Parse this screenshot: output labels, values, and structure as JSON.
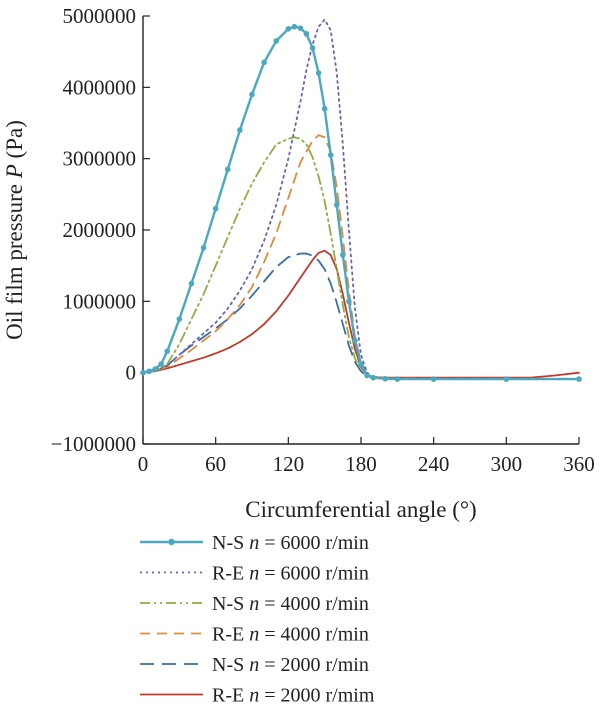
{
  "chart_data": {
    "type": "line",
    "xlabel": "Circumferential angle (°)",
    "ylabel_prefix": "Oil film pressure ",
    "ylabel_symbol": "P",
    "ylabel_suffix": " (Pa)",
    "xlim": [
      0,
      360
    ],
    "ylim": [
      -1000000,
      5000000
    ],
    "xticks": [
      0,
      60,
      120,
      180,
      240,
      300,
      360
    ],
    "yticks": [
      -1000000,
      0,
      1000000,
      2000000,
      3000000,
      4000000,
      5000000
    ],
    "xtick_labels": [
      "0",
      "60",
      "120",
      "180",
      "240",
      "300",
      "360"
    ],
    "ytick_labels": [
      "−1000000",
      "0",
      "1000000",
      "2000000",
      "3000000",
      "4000000",
      "5000000"
    ],
    "grid": false,
    "legend_position": "below",
    "series": [
      {
        "name": "N-S n = 6000 r/min",
        "label_prefix": "N-S ",
        "label_var": "n",
        "label_value": " =  6000 r/min",
        "color": "#4aa8c0",
        "style": "solid-dot",
        "x": [
          0,
          5,
          10,
          15,
          20,
          30,
          40,
          50,
          60,
          70,
          80,
          90,
          100,
          110,
          120,
          125,
          130,
          135,
          140,
          145,
          150,
          155,
          160,
          165,
          170,
          175,
          180,
          185,
          190,
          200,
          210,
          240,
          300,
          360
        ],
        "y": [
          0,
          20000,
          50000,
          120000,
          300000,
          750000,
          1250000,
          1750000,
          2300000,
          2850000,
          3400000,
          3900000,
          4350000,
          4650000,
          4820000,
          4850000,
          4830000,
          4750000,
          4550000,
          4200000,
          3700000,
          3050000,
          2350000,
          1650000,
          1000000,
          450000,
          120000,
          -40000,
          -70000,
          -85000,
          -90000,
          -90000,
          -90000,
          -90000
        ]
      },
      {
        "name": "R-E n = 6000 r/min",
        "label_prefix": "R-E ",
        "label_var": "n",
        "label_value": " = 6000 r/min",
        "color": "#6a62b8",
        "style": "dotted",
        "x": [
          0,
          10,
          20,
          30,
          40,
          50,
          60,
          70,
          80,
          90,
          100,
          110,
          120,
          130,
          135,
          140,
          145,
          150,
          155,
          160,
          165,
          170,
          175,
          180,
          185,
          190,
          200,
          240,
          300,
          360
        ],
        "y": [
          0,
          20000,
          100000,
          250000,
          400000,
          550000,
          700000,
          900000,
          1150000,
          1450000,
          1850000,
          2350000,
          3000000,
          3800000,
          4250000,
          4600000,
          4850000,
          4950000,
          4800000,
          4200000,
          3200000,
          2000000,
          900000,
          250000,
          0,
          -70000,
          -85000,
          -90000,
          -90000,
          -90000
        ]
      },
      {
        "name": "N-S n = 4000 r/min",
        "label_prefix": "N-S ",
        "label_var": "n",
        "label_value": " = 4000 r/min",
        "color": "#8bb040",
        "style": "dash-dot-dot",
        "x": [
          0,
          10,
          20,
          30,
          40,
          50,
          60,
          70,
          80,
          90,
          100,
          110,
          120,
          125,
          130,
          135,
          140,
          145,
          150,
          155,
          160,
          165,
          170,
          175,
          180,
          185,
          190,
          200,
          240,
          300,
          360
        ],
        "y": [
          0,
          30000,
          120000,
          400000,
          750000,
          1100000,
          1500000,
          1900000,
          2300000,
          2650000,
          2950000,
          3200000,
          3280000,
          3300000,
          3280000,
          3200000,
          3020000,
          2750000,
          2400000,
          1950000,
          1450000,
          950000,
          500000,
          200000,
          50000,
          -40000,
          -70000,
          -85000,
          -90000,
          -90000,
          -90000
        ]
      },
      {
        "name": "R-E n = 4000 r/min",
        "label_prefix": "R-E ",
        "label_var": "n",
        "label_value": " = 4000 r/min",
        "color": "#e08a3a",
        "style": "dashed",
        "x": [
          0,
          10,
          20,
          30,
          40,
          50,
          60,
          70,
          80,
          90,
          100,
          110,
          120,
          130,
          140,
          145,
          150,
          155,
          160,
          165,
          170,
          175,
          180,
          185,
          190,
          200,
          240,
          300,
          360
        ],
        "y": [
          0,
          20000,
          80000,
          200000,
          320000,
          450000,
          580000,
          750000,
          950000,
          1200000,
          1550000,
          1950000,
          2450000,
          2950000,
          3250000,
          3330000,
          3300000,
          3100000,
          2600000,
          1900000,
          1150000,
          500000,
          150000,
          -20000,
          -60000,
          -80000,
          -85000,
          -85000,
          -85000
        ]
      },
      {
        "name": "N-S n = 2000 r/min",
        "label_prefix": "N-S ",
        "label_var": "n",
        "label_value": " = 2000 r/min",
        "color": "#3a6ea8",
        "style": "long-dash",
        "x": [
          0,
          10,
          20,
          30,
          40,
          50,
          60,
          70,
          80,
          90,
          100,
          110,
          120,
          130,
          135,
          140,
          145,
          150,
          155,
          160,
          165,
          170,
          175,
          180,
          185,
          190,
          200,
          240,
          300,
          360
        ],
        "y": [
          0,
          30000,
          100000,
          250000,
          380000,
          500000,
          620000,
          750000,
          900000,
          1080000,
          1280000,
          1480000,
          1620000,
          1670000,
          1670000,
          1640000,
          1570000,
          1450000,
          1250000,
          980000,
          680000,
          380000,
          150000,
          20000,
          -50000,
          -70000,
          -85000,
          -90000,
          -90000,
          -90000
        ]
      },
      {
        "name": "R-E n = 2000 r/mim",
        "label_prefix": "R-E ",
        "label_var": "n",
        "label_value": " = 2000 r/mim",
        "color": "#c0392b",
        "style": "solid",
        "x": [
          0,
          10,
          20,
          30,
          40,
          50,
          60,
          70,
          80,
          90,
          100,
          110,
          120,
          130,
          140,
          145,
          150,
          155,
          160,
          165,
          170,
          175,
          180,
          185,
          190,
          200,
          240,
          300,
          320,
          340,
          360
        ],
        "y": [
          0,
          20000,
          60000,
          110000,
          160000,
          210000,
          270000,
          340000,
          430000,
          540000,
          680000,
          860000,
          1080000,
          1330000,
          1580000,
          1680000,
          1710000,
          1650000,
          1450000,
          1100000,
          700000,
          330000,
          80000,
          -40000,
          -60000,
          -70000,
          -70000,
          -70000,
          -70000,
          -40000,
          0
        ]
      }
    ]
  }
}
